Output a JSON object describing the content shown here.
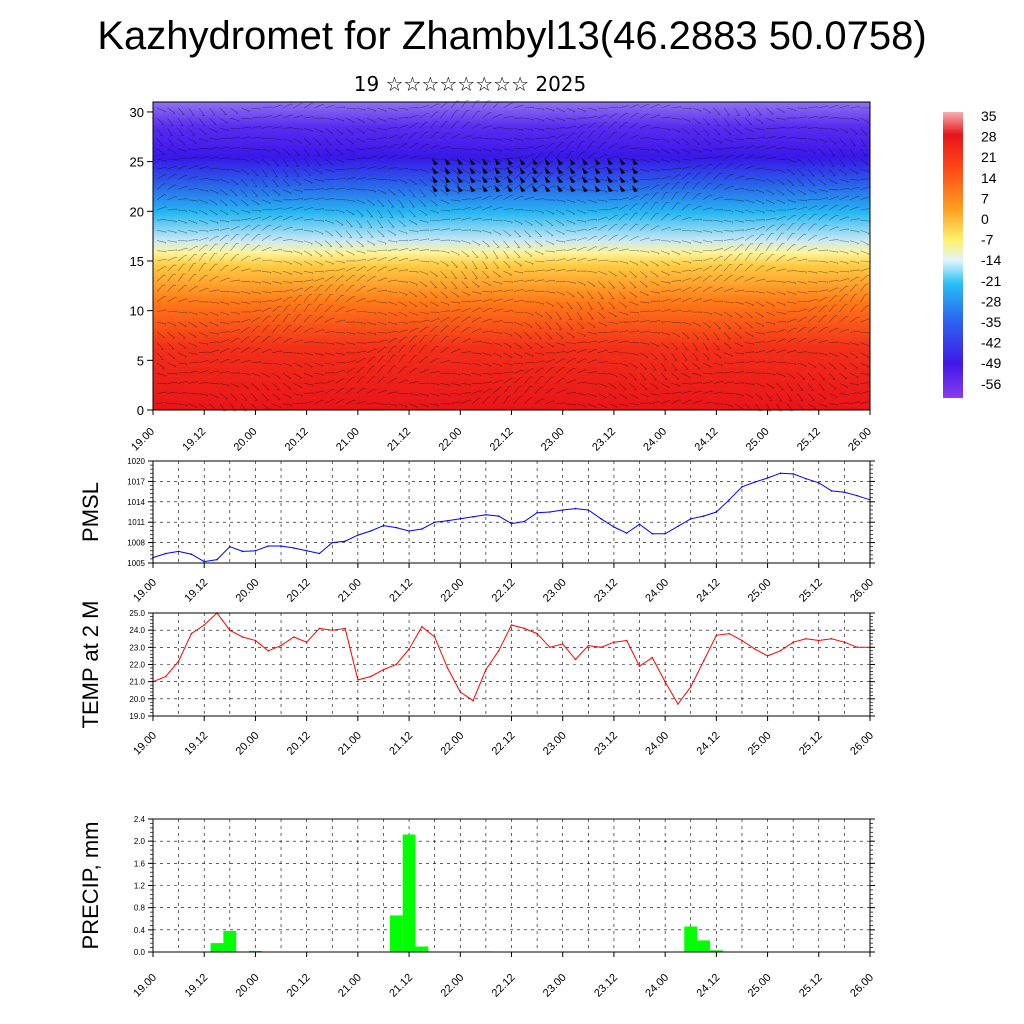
{
  "page": {
    "title": "Kazhydromet for Zhambyl13(46.2883 50.0758)",
    "subtitle": "19 ☆☆☆☆☆☆☆☆ 2025"
  },
  "chart_data": [
    {
      "type": "heatmap",
      "title": "",
      "x_ticks": [
        "19.00",
        "19.12",
        "20.00",
        "20.12",
        "21.00",
        "21.12",
        "22.00",
        "22.12",
        "23.00",
        "23.12",
        "24.00",
        "24.12",
        "25.00",
        "25.12",
        "26.00"
      ],
      "y_ticks": [
        0,
        5,
        10,
        15,
        20,
        25,
        30
      ],
      "ylim": [
        0,
        31
      ],
      "colorbar_labels": [
        "35",
        "28",
        "21",
        "14",
        "7",
        "0",
        "-7",
        "-14",
        "-21",
        "-28",
        "-35",
        "-42",
        "-49",
        "-56"
      ],
      "colors": {
        "bottom": "#e8141a",
        "mid_warm": "#ff8a18",
        "mid": "#fff170",
        "mid_cold": "#28b8f2",
        "top": "#3818e8"
      },
      "overlay": "wind barbs"
    },
    {
      "type": "line",
      "ylabel": "PMSL",
      "ylim": [
        1005,
        1020
      ],
      "y_ticks": [
        "1005",
        "1008",
        "1011",
        "1014",
        "1017",
        "1020"
      ],
      "x_ticks": [
        "19.00",
        "19.12",
        "20.00",
        "20.12",
        "21.00",
        "21.12",
        "22.00",
        "22.12",
        "23.00",
        "23.12",
        "24.00",
        "24.12",
        "25.00",
        "25.12",
        "26.00"
      ],
      "grid": true,
      "color": "#0000ff",
      "x": [
        0.0,
        0.25,
        0.5,
        0.75,
        1.0,
        1.25,
        1.5,
        1.75,
        2.0,
        2.25,
        2.5,
        2.75,
        3.0,
        3.25,
        3.5,
        3.75,
        4.0,
        4.25,
        4.5,
        4.75,
        5.0,
        5.25,
        5.5,
        5.75,
        6.0,
        6.25,
        6.5,
        6.75,
        7.0,
        7.25,
        7.5,
        7.75,
        8.0,
        8.25,
        8.5,
        8.75,
        9.0,
        9.25,
        9.5,
        9.75,
        10.0,
        10.25,
        10.5,
        10.75,
        11.0,
        11.25,
        11.5,
        11.75,
        12.0,
        12.25,
        12.5,
        12.75,
        13.0,
        13.25,
        13.5,
        13.75,
        14.0
      ],
      "values": [
        1005.8,
        1006.4,
        1006.7,
        1006.3,
        1005.2,
        1005.5,
        1007.4,
        1006.7,
        1006.8,
        1007.5,
        1007.5,
        1007.2,
        1006.8,
        1006.4,
        1008.0,
        1008.2,
        1009.1,
        1009.7,
        1010.5,
        1010.2,
        1009.7,
        1010.0,
        1011.0,
        1011.2,
        1011.5,
        1011.8,
        1012.1,
        1011.9,
        1010.8,
        1011.1,
        1012.4,
        1012.5,
        1012.8,
        1013.0,
        1012.8,
        1011.5,
        1010.3,
        1009.4,
        1010.7,
        1009.3,
        1009.3,
        1010.4,
        1011.5,
        1011.9,
        1012.5,
        1014.3,
        1016.2,
        1016.9,
        1017.5,
        1018.2,
        1018.1,
        1017.4,
        1016.8,
        1015.6,
        1015.4,
        1014.9,
        1014.3
      ]
    },
    {
      "type": "line",
      "ylabel": "TEMP at 2 M",
      "ylim": [
        19.0,
        25.0
      ],
      "y_ticks": [
        "19.0",
        "20.0",
        "21.0",
        "22.0",
        "23.0",
        "24.0",
        "25.0"
      ],
      "x_ticks": [
        "19.00",
        "19.12",
        "20.00",
        "20.12",
        "21.00",
        "21.12",
        "22.00",
        "22.12",
        "23.00",
        "23.12",
        "24.00",
        "24.12",
        "25.00",
        "25.12",
        "26.00"
      ],
      "grid": true,
      "color": "#ff0000",
      "x": [
        0.0,
        0.25,
        0.5,
        0.75,
        1.0,
        1.25,
        1.5,
        1.75,
        2.0,
        2.25,
        2.5,
        2.75,
        3.0,
        3.25,
        3.5,
        3.75,
        4.0,
        4.25,
        4.5,
        4.75,
        5.0,
        5.25,
        5.5,
        5.75,
        6.0,
        6.25,
        6.5,
        6.75,
        7.0,
        7.25,
        7.5,
        7.75,
        8.0,
        8.25,
        8.5,
        8.75,
        9.0,
        9.25,
        9.5,
        9.75,
        10.0,
        10.25,
        10.5,
        10.75,
        11.0,
        11.25,
        11.5,
        11.75,
        12.0,
        12.25,
        12.5,
        12.75,
        13.0,
        13.25,
        13.5,
        13.75,
        14.0
      ],
      "values": [
        21.0,
        21.3,
        22.2,
        23.8,
        24.3,
        25.0,
        24.0,
        23.6,
        23.4,
        22.8,
        23.1,
        23.6,
        23.3,
        24.1,
        24.0,
        24.1,
        21.1,
        21.3,
        21.7,
        22.0,
        22.9,
        24.2,
        23.6,
        21.8,
        20.4,
        19.9,
        21.7,
        22.8,
        24.3,
        24.1,
        23.8,
        23.0,
        23.2,
        22.3,
        23.1,
        23.0,
        23.3,
        23.4,
        21.9,
        22.4,
        21.0,
        19.7,
        20.7,
        22.2,
        23.7,
        23.8,
        23.4,
        22.9,
        22.5,
        22.8,
        23.3,
        23.5,
        23.4,
        23.5,
        23.3,
        23.0,
        23.0
      ]
    },
    {
      "type": "bar",
      "ylabel": "PRECIP, mm",
      "ylim": [
        0.0,
        2.4
      ],
      "y_ticks": [
        "0.0",
        "0.4",
        "0.8",
        "1.2",
        "1.6",
        "2.0",
        "2.4"
      ],
      "x_ticks": [
        "19.00",
        "19.12",
        "20.00",
        "20.12",
        "21.00",
        "21.12",
        "22.00",
        "22.12",
        "23.00",
        "23.12",
        "24.00",
        "24.12",
        "25.00",
        "25.12",
        "26.00"
      ],
      "grid": true,
      "color": "#00ff00",
      "x": [
        1.25,
        1.5,
        2.0,
        4.75,
        5.0,
        5.25,
        6.5,
        10.5,
        10.75,
        11.0
      ],
      "values": [
        0.16,
        0.38,
        0.02,
        0.66,
        2.12,
        0.1,
        0.01,
        0.46,
        0.21,
        0.03
      ]
    }
  ]
}
